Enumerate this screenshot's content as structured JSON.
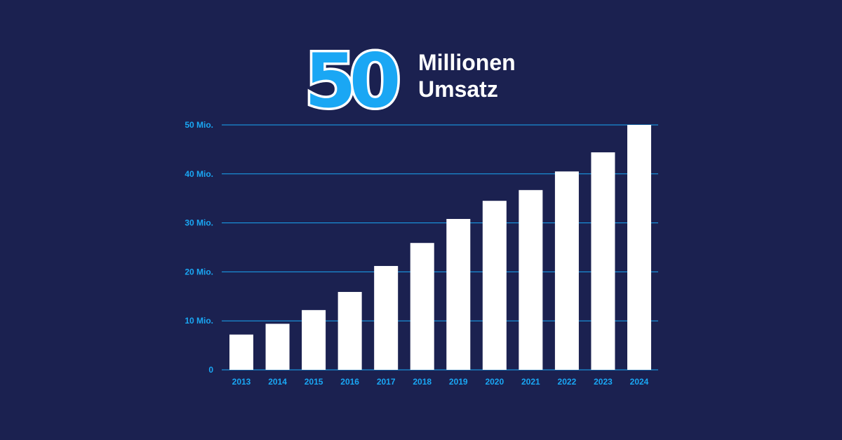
{
  "header": {
    "number": "50",
    "line1": "Millionen",
    "line2": "Umsatz"
  },
  "colors": {
    "background": "#1b2150",
    "accent": "#1aa7f4",
    "bar": "#ffffff"
  },
  "chart_data": {
    "type": "bar",
    "categories": [
      "2013",
      "2014",
      "2015",
      "2016",
      "2017",
      "2018",
      "2019",
      "2020",
      "2021",
      "2022",
      "2023",
      "2024"
    ],
    "values": [
      7.2,
      9.4,
      12.2,
      15.9,
      21.2,
      25.9,
      30.8,
      34.5,
      36.7,
      40.5,
      44.4,
      50.0
    ],
    "yticks": [
      0,
      10,
      20,
      30,
      40,
      50
    ],
    "ytick_labels": [
      "0",
      "10 Mio.",
      "20 Mio.",
      "30 Mio.",
      "40 Mio.",
      "50 Mio."
    ],
    "ylim": [
      0,
      50
    ],
    "grid": true,
    "title": "",
    "xlabel": "",
    "ylabel": ""
  }
}
